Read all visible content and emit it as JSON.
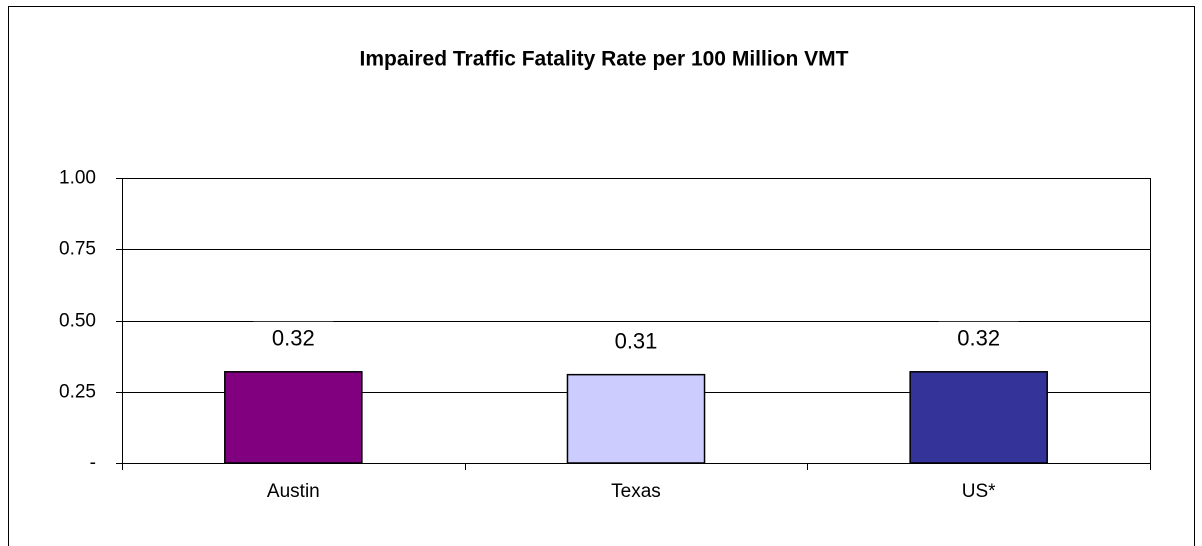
{
  "chart_data": {
    "type": "bar",
    "title": "Impaired Traffic Fatality Rate per 100 Million VMT",
    "categories": [
      "Austin",
      "Texas",
      "US*"
    ],
    "values": [
      0.32,
      0.31,
      0.32
    ],
    "colors": [
      "#800080",
      "#ccccff",
      "#333399"
    ],
    "ylim": [
      0,
      1
    ],
    "yticks": [
      {
        "value": 0,
        "label": "-"
      },
      {
        "value": 0.25,
        "label": "0.25"
      },
      {
        "value": 0.5,
        "label": "0.50"
      },
      {
        "value": 0.75,
        "label": "0.75"
      },
      {
        "value": 1,
        "label": "1.00"
      }
    ],
    "grid": true
  }
}
